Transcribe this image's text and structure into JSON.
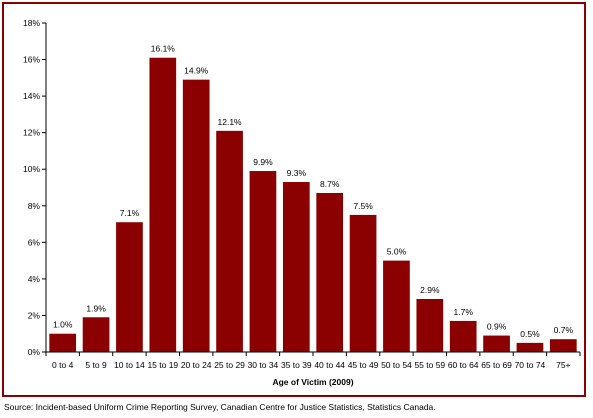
{
  "chart_data": {
    "type": "bar",
    "categories": [
      "0 to 4",
      "5 to 9",
      "10 to 14",
      "15 to 19",
      "20 to 24",
      "25 to 29",
      "30 to 34",
      "35 to 39",
      "40 to 44",
      "45 to 49",
      "50 to 54",
      "55 to 59",
      "60 to 64",
      "65 to 69",
      "70 to 74",
      "75+"
    ],
    "values": [
      1.0,
      1.9,
      7.1,
      16.1,
      14.9,
      12.1,
      9.9,
      9.3,
      8.7,
      7.5,
      5.0,
      2.9,
      1.7,
      0.9,
      0.5,
      0.7
    ],
    "data_labels": [
      "1.0%",
      "1.9%",
      "7.1%",
      "16.1%",
      "14.9%",
      "12.1%",
      "9.9%",
      "9.3%",
      "8.7%",
      "7.5%",
      "5.0%",
      "2.9%",
      "1.7%",
      "0.9%",
      "0.5%",
      "0.7%"
    ],
    "y_ticks": [
      "0%",
      "2%",
      "4%",
      "6%",
      "8%",
      "10%",
      "12%",
      "14%",
      "16%",
      "18%"
    ],
    "ylim": [
      0,
      18
    ],
    "xlabel": "Age of Victim (2009)",
    "ylabel": "",
    "title": "",
    "grid": false,
    "legend": "none",
    "bar_color": "#8b0000",
    "border_color": "#8b0000"
  },
  "source": "Source:  Incident-based Uniform Crime Reporting Survey, Canadian Centre for Justice Statistics, Statistics Canada."
}
